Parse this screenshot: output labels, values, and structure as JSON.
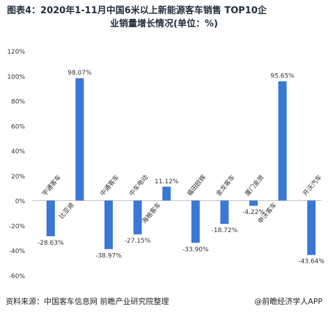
{
  "title": {
    "line1": "图表4：2020年1-11月中国6米以上新能源客车销售 TOP10企",
    "line2": "业销量增长情况(单位：%)"
  },
  "footer": {
    "source": "资料来源：中国客车信息网 前瞻产业研究院整理",
    "brand": "@前瞻经济学人APP"
  },
  "colors": {
    "bar": "#3a78d6",
    "axis": "#bfbfbf",
    "text": "#333333",
    "grid": "#e6e6e6"
  },
  "chart_data": {
    "type": "bar",
    "categories": [
      "宇通客车",
      "比亚迪",
      "中通客车",
      "中车电动",
      "海格客车",
      "福田欧辉",
      "金龙客车",
      "厦门金旅",
      "申沃客车",
      "开沃汽车"
    ],
    "values": [
      -28.63,
      98.07,
      -38.97,
      -27.15,
      11.12,
      -33.9,
      -18.72,
      -4.22,
      95.65,
      -43.64
    ],
    "data_labels": [
      "-28.63%",
      "98.07%",
      "-38.97%",
      "-27.15%",
      "11.12%",
      "-33.90%",
      "-18.72%",
      "-4.22%",
      "95.65%",
      "-43.64%"
    ],
    "yticks": [
      "120%",
      "100%",
      "80%",
      "60%",
      "40%",
      "20%",
      "0%",
      "-20%",
      "-40%",
      "-60%"
    ],
    "ytick_values": [
      120,
      100,
      80,
      60,
      40,
      20,
      0,
      -20,
      -40,
      -60
    ],
    "ylim": [
      -60,
      120
    ],
    "grid": false,
    "legend": "none"
  }
}
